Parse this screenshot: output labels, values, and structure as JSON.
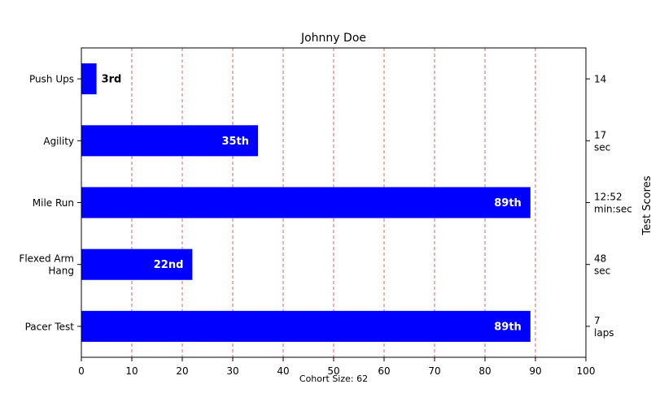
{
  "chart_data": {
    "type": "bar",
    "orientation": "horizontal",
    "title": "Johnny Doe",
    "categories": [
      "Pacer Test",
      "Flexed Arm\nHang",
      "Mile Run",
      "Agility",
      "Push Ups"
    ],
    "values": [
      89,
      22,
      89,
      35,
      3
    ],
    "rank_labels": [
      "89th",
      "22nd",
      "89th",
      "35th",
      "3rd"
    ],
    "score_labels": [
      "7\nlaps",
      "48\nsec",
      "12:52\nmin:sec",
      "17\nsec",
      "14"
    ],
    "right_ylabel": "Test Scores",
    "xlim": [
      0,
      100
    ],
    "xticks": [
      0,
      10,
      20,
      30,
      40,
      50,
      60,
      70,
      80,
      90,
      100
    ],
    "grid": "vertical dashed",
    "bar_color": "#0000ff",
    "grid_color": "#e06060"
  },
  "footer": {
    "cohort": "Cohort Size: 62"
  }
}
